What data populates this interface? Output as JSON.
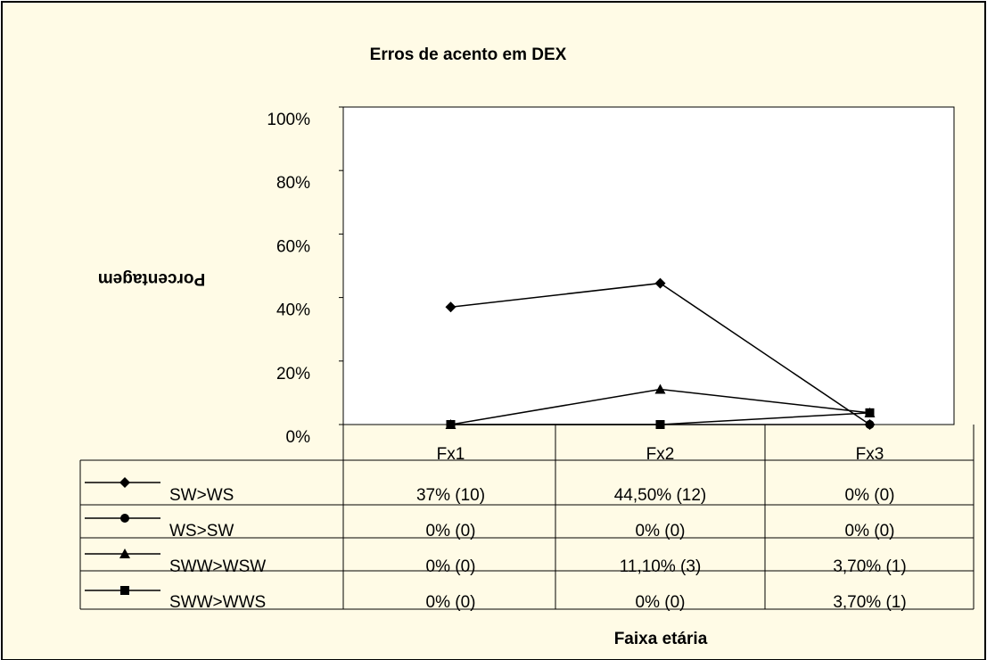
{
  "chart_data": {
    "type": "line",
    "title": "Erros de acento em DEX",
    "x_label": "Faixa etária",
    "y_label": "Porcentagem",
    "categories": [
      "Fx1",
      "Fx2",
      "Fx3"
    ],
    "series": [
      {
        "name": "SW>WS",
        "color": "#000000",
        "marker": "diamond",
        "values": [
          37,
          44.5,
          0
        ],
        "value_labels": [
          "37%  (10)",
          "44,50% (12)",
          "0% (0)"
        ]
      },
      {
        "name": "WS>SW",
        "color": "#000000",
        "marker": "circle",
        "values": [
          0,
          0,
          0
        ],
        "value_labels": [
          "0% (0)",
          "0% (0)",
          "0% (0)"
        ]
      },
      {
        "name": "SWW>WSW",
        "color": "#000000",
        "marker": "triangle",
        "values": [
          0,
          11.1,
          3.7
        ],
        "value_labels": [
          "0% (0)",
          "11,10% (3)",
          "3,70% (1)"
        ]
      },
      {
        "name": "SWW>WWS",
        "color": "#000000",
        "marker": "square",
        "values": [
          0,
          0,
          3.7
        ],
        "value_labels": [
          "0% (0)",
          "0% (0)",
          "3,70% (1)"
        ]
      }
    ],
    "ylim": [
      0,
      100
    ],
    "yticks": [
      {
        "value": 0,
        "label": "0%"
      },
      {
        "value": 20,
        "label": "20%"
      },
      {
        "value": 40,
        "label": "40%"
      },
      {
        "value": 60,
        "label": "60%"
      },
      {
        "value": 80,
        "label": "80%"
      },
      {
        "value": 100,
        "label": "100%"
      }
    ],
    "grid": false,
    "legend": "data-table"
  }
}
